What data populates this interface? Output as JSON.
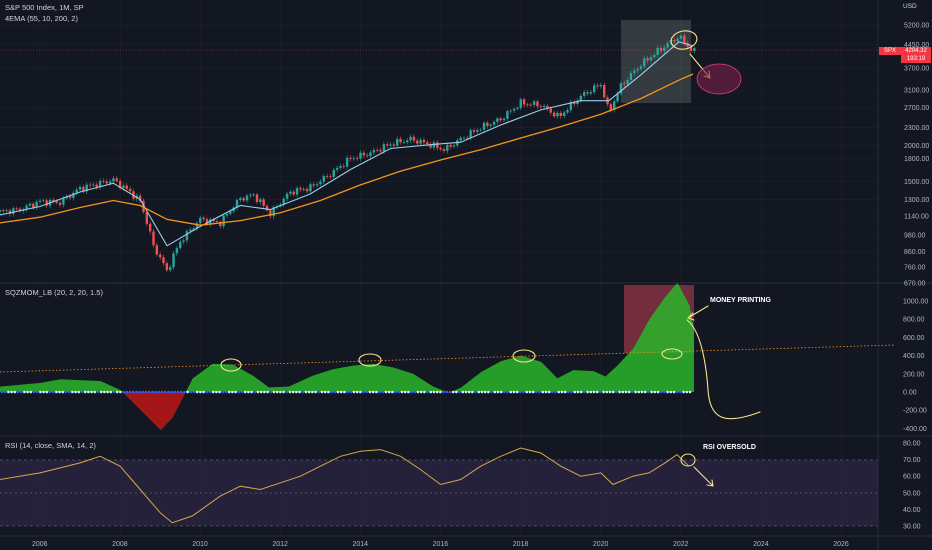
{
  "header": {
    "title": "S&P 500 Index, 1M, SP",
    "ema_label": "4EMA (55, 10, 200, 2)"
  },
  "panes": {
    "sqzmom_label": "SQZMOM_LB (20, 2, 20, 1.5)",
    "rsi_label": "RSI (14, close, SMA, 14, 2)"
  },
  "price_axis": {
    "unit": "USD",
    "ticks": [
      "5200.00",
      "4450.00",
      "3700.00",
      "3100.00",
      "2700.00",
      "2300.00",
      "2000.00",
      "1800.00",
      "1500.00",
      "1300.00",
      "1140.00",
      "980.00",
      "860.00",
      "760.00",
      "670.00"
    ],
    "symbol_tag": "SPX",
    "last_price": "4204.32",
    "last_change": "193:19"
  },
  "mom_axis": {
    "ticks": [
      "1000.00",
      "800.00",
      "600.00",
      "400.00",
      "200.00",
      "0.00",
      "-200.00",
      "-400.00"
    ]
  },
  "rsi_axis": {
    "ticks": [
      "80.00",
      "70.00",
      "60.00",
      "50.00",
      "40.00",
      "30.00"
    ]
  },
  "time_axis": {
    "ticks": [
      "2006",
      "2008",
      "2010",
      "2012",
      "2014",
      "2016",
      "2018",
      "2020",
      "2022",
      "2024",
      "2026"
    ]
  },
  "annotations": {
    "money_printing": "MONEY PRINTING",
    "rsi_oversold": "RSI OVERSOLD"
  },
  "colors": {
    "background": "#131722",
    "up_candle": "#26a69a",
    "down_candle": "#ef5350",
    "ema_fast": "#9ad0ec",
    "ema_slow": "#f7931a",
    "momentum_up": "#2bb52b",
    "momentum_down": "#c01818",
    "rsi_line": "#d6a84a",
    "rsi_band": "#2a2340",
    "annotation": "#f7e38a"
  },
  "chart_data": [
    {
      "type": "candlestick",
      "title": "S&P 500 Index, 1M, SP",
      "x_range": [
        "2005",
        "2026"
      ],
      "y_scale": "log",
      "ylim": [
        670,
        6000
      ],
      "series": [
        {
          "name": "price",
          "x": [
            2005.0,
            2005.5,
            2006.0,
            2006.5,
            2007.0,
            2007.5,
            2007.83,
            2008.25,
            2008.5,
            2008.83,
            2009.17,
            2009.5,
            2010.0,
            2010.5,
            2011.0,
            2011.33,
            2011.75,
            2012.25,
            2012.75,
            2013.25,
            2013.75,
            2014.25,
            2014.75,
            2015.25,
            2015.75,
            2016.1,
            2016.5,
            2017.0,
            2017.5,
            2018.0,
            2018.5,
            2018.95,
            2019.5,
            2020.0,
            2020.2,
            2020.5,
            2021.0,
            2021.5,
            2021.95,
            2022.1,
            2022.3
          ],
          "y": [
            1180,
            1200,
            1280,
            1270,
            1420,
            1480,
            1520,
            1380,
            1280,
            900,
            735,
            930,
            1110,
            1080,
            1310,
            1350,
            1160,
            1380,
            1430,
            1590,
            1800,
            1880,
            2020,
            2100,
            2010,
            1930,
            2100,
            2300,
            2460,
            2800,
            2750,
            2500,
            2950,
            3250,
            2580,
            3200,
            3800,
            4300,
            4750,
            4500,
            4204
          ]
        }
      ]
    },
    {
      "type": "line",
      "title": "4EMA (55, 10, 200, 2)",
      "series": [
        {
          "x": [
            2005.0,
            2006.0,
            2007.0,
            2007.83,
            2008.5,
            2009.17,
            2010.0,
            2011.0,
            2011.75,
            2012.75,
            2013.75,
            2014.75,
            2015.75,
            2016.5,
            2017.5,
            2018.5,
            2019.5,
            2020.2,
            2021.0,
            2021.95,
            2022.3
          ],
          "y": [
            1150,
            1230,
            1380,
            1480,
            1300,
            900,
            1050,
            1240,
            1200,
            1360,
            1650,
            1950,
            2010,
            2050,
            2350,
            2650,
            2850,
            2850,
            3500,
            4550,
            4400
          ]
        },
        {
          "x": [
            2005.0,
            2006.0,
            2007.0,
            2007.83,
            2008.5,
            2009.17,
            2010.0,
            2011.0,
            2012.0,
            2013.0,
            2014.0,
            2015.0,
            2016.0,
            2017.0,
            2018.0,
            2019.0,
            2020.0,
            2021.0,
            2022.0,
            2022.3
          ],
          "y": [
            1080,
            1130,
            1220,
            1290,
            1240,
            1110,
            1060,
            1100,
            1170,
            1290,
            1460,
            1630,
            1780,
            1930,
            2120,
            2320,
            2560,
            2900,
            3380,
            3520
          ]
        }
      ]
    },
    {
      "type": "area",
      "title": "SQZMOM_LB (20, 2, 20, 1.5)",
      "ylim": [
        -450,
        1100
      ],
      "series": [
        {
          "x": [
            2005.0,
            2006.0,
            2006.5,
            2007.0,
            2007.5,
            2008.0,
            2008.5,
            2009.0,
            2009.3,
            2009.8,
            2010.3,
            2010.8,
            2011.3,
            2011.7,
            2012.2,
            2012.8,
            2013.3,
            2013.8,
            2014.3,
            2014.8,
            2015.3,
            2015.8,
            2016.2,
            2016.5,
            2017.0,
            2017.5,
            2018.0,
            2018.5,
            2018.9,
            2019.3,
            2019.8,
            2020.1,
            2020.4,
            2020.8,
            2021.2,
            2021.6,
            2021.9,
            2022.2,
            2022.3
          ],
          "y": [
            60,
            100,
            140,
            130,
            120,
            20,
            -200,
            -420,
            -280,
            150,
            310,
            300,
            180,
            50,
            60,
            180,
            250,
            290,
            310,
            270,
            200,
            60,
            -10,
            50,
            220,
            340,
            400,
            330,
            150,
            240,
            230,
            170,
            290,
            480,
            800,
            1050,
            1200,
            950,
            700
          ]
        }
      ]
    },
    {
      "type": "line",
      "title": "RSI (14, close, SMA, 14, 2)",
      "ylim": [
        28,
        82
      ],
      "series": [
        {
          "x": [
            2005.0,
            2006.0,
            2007.0,
            2007.5,
            2008.0,
            2008.5,
            2009.0,
            2009.3,
            2009.8,
            2010.5,
            2011.0,
            2011.5,
            2012.0,
            2012.5,
            2013.0,
            2013.5,
            2014.0,
            2014.5,
            2015.0,
            2015.5,
            2016.0,
            2016.5,
            2017.0,
            2017.5,
            2018.0,
            2018.5,
            2019.0,
            2019.5,
            2020.0,
            2020.3,
            2020.8,
            2021.2,
            2021.6,
            2021.9,
            2022.2
          ],
          "y": [
            58,
            62,
            68,
            72,
            66,
            52,
            38,
            32,
            36,
            48,
            54,
            52,
            56,
            60,
            66,
            72,
            75,
            76,
            72,
            64,
            55,
            58,
            66,
            72,
            77,
            74,
            66,
            60,
            62,
            55,
            60,
            62,
            68,
            73,
            66
          ]
        }
      ]
    }
  ]
}
